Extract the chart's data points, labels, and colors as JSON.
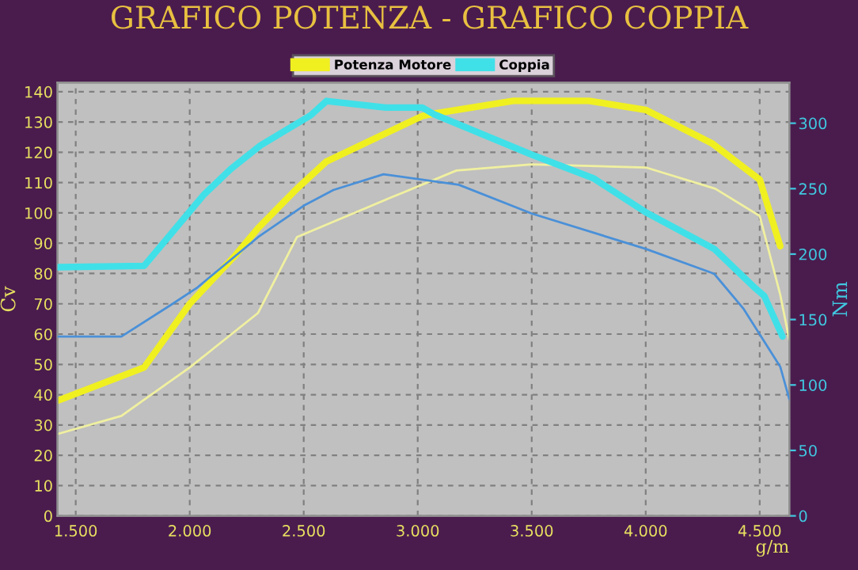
{
  "chart_data": {
    "type": "line",
    "title": "GRAFICO POTENZA - GRAFICO COPPIA",
    "xlabel": "g/m",
    "ylabel": "Cv",
    "y2label": "Nm",
    "series": [
      {
        "name": "Potenza Motore",
        "color": "#f0f020",
        "x": [
          1420,
          1800,
          2000,
          2200,
          2300,
          2470,
          2600,
          3020,
          3090,
          3420,
          3750,
          4000,
          4290,
          4500,
          4590
        ],
        "values": [
          38,
          49,
          70,
          86,
          95,
          108,
          117,
          132,
          133,
          137,
          137,
          134,
          123,
          111,
          89
        ]
      },
      {
        "color": "#f0f0a0",
        "x": [
          1420,
          1700,
          2000,
          2300,
          2470,
          2880,
          3170,
          3500,
          4000,
          4305,
          4500,
          4590,
          4630
        ],
        "values": [
          27,
          33,
          49,
          67,
          92,
          105,
          114,
          116,
          115,
          108,
          99,
          73,
          58
        ]
      },
      {
        "name": "Coppia",
        "color": "#40e0e8",
        "axis": "y2",
        "x": [
          1420,
          1800,
          2060,
          2180,
          2310,
          2530,
          2600,
          2860,
          3020,
          3070,
          3500,
          3770,
          4000,
          4300,
          4480,
          4520,
          4600
        ],
        "values": [
          190,
          191,
          245,
          265,
          283,
          306,
          317,
          312,
          312,
          307,
          276,
          258,
          232,
          204,
          174,
          168,
          137
        ]
      },
      {
        "color": "#4a90d8",
        "axis": "y2",
        "x": [
          1420,
          1700,
          1925,
          2030,
          2300,
          2500,
          2630,
          2850,
          3180,
          3500,
          4000,
          4300,
          4430,
          4590,
          4630
        ],
        "values": [
          137,
          137,
          162,
          174,
          213,
          237,
          249,
          261,
          253,
          231,
          204,
          185,
          158,
          114,
          89
        ]
      }
    ],
    "xlim": [
      1420,
      4630
    ],
    "ylim": [
      0,
      143
    ],
    "y2lim": [
      0,
      331
    ],
    "xticks": [
      {
        "value": 1500,
        "label": "1.500"
      },
      {
        "value": 2000,
        "label": "2.000"
      },
      {
        "value": 2500,
        "label": "2.500"
      },
      {
        "value": 3000,
        "label": "3.000"
      },
      {
        "value": 3500,
        "label": "3.500"
      },
      {
        "value": 4000,
        "label": "4.000"
      },
      {
        "value": 4500,
        "label": "4.500"
      }
    ],
    "yticks": [
      0,
      10,
      20,
      30,
      40,
      50,
      60,
      70,
      80,
      90,
      100,
      110,
      120,
      130,
      140
    ],
    "y2ticks": [
      0,
      50,
      100,
      150,
      200,
      250,
      300
    ],
    "grid": true,
    "legend": "top"
  }
}
